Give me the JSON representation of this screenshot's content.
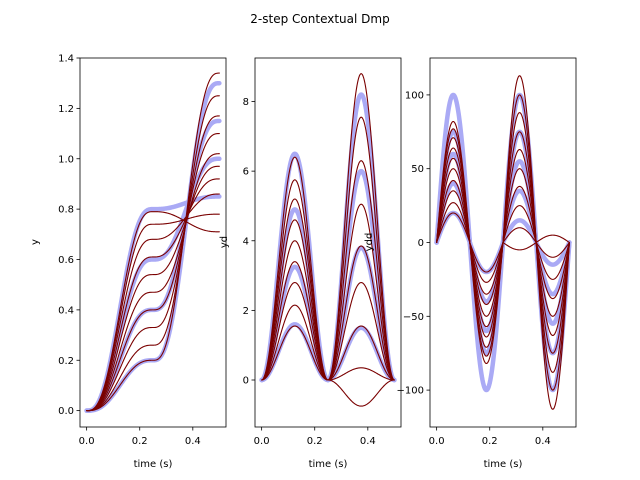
{
  "figure": {
    "title": "2-step Contextual Dmp",
    "colors": {
      "demo": "#aaaaf5",
      "reproduction": "#7a0000"
    }
  },
  "chart_data": [
    {
      "type": "line",
      "function": "y",
      "xlabel": "time (s)",
      "ylabel": "y",
      "xlim": [
        -0.025,
        0.525
      ],
      "ylim": [
        -0.065,
        1.4
      ],
      "xticks": [
        0.0,
        0.2,
        0.4
      ],
      "xtick_labels": [
        "0.0",
        "0.2",
        "0.4"
      ],
      "yticks": [
        0.0,
        0.2,
        0.4,
        0.6,
        0.8,
        1.0,
        1.2,
        1.4
      ],
      "ytick_labels": [
        "0.0",
        "0.2",
        "0.4",
        "0.6",
        "0.8",
        "1.0",
        "1.2",
        "1.4"
      ],
      "grid": false,
      "parameters": {
        "duration_s": 0.5,
        "crossing_time_s": 0.375,
        "crossing_value": 0.75,
        "demo_first_plateau": [
          0.2,
          0.4,
          0.6,
          0.8
        ],
        "reproduction_first_plateau": [
          0.2,
          0.26,
          0.33,
          0.4,
          0.47,
          0.54,
          0.61,
          0.68,
          0.74,
          0.79
        ],
        "demo_final_values": [
          1.3,
          1.15,
          1.0,
          0.85
        ],
        "reproduction_final_values": [
          1.34,
          1.25,
          1.17,
          1.1,
          1.02,
          0.97,
          0.92,
          0.86,
          0.78,
          0.71
        ]
      }
    },
    {
      "type": "line",
      "function": "yd",
      "xlabel": "time (s)",
      "ylabel": "yd",
      "xlim": [
        -0.025,
        0.525
      ],
      "ylim": [
        -1.35,
        9.25
      ],
      "xticks": [
        0.0,
        0.2,
        0.4
      ],
      "xtick_labels": [
        "0.0",
        "0.2",
        "0.4"
      ],
      "yticks": [
        0,
        2,
        4,
        6,
        8
      ],
      "ytick_labels": [
        "0",
        "2",
        "4",
        "6",
        "8"
      ],
      "grid": false,
      "parameters": {
        "demo_first_peak": [
          1.6,
          3.25,
          4.9,
          6.5
        ],
        "demo_second_peak": [
          8.2,
          6.0,
          3.8,
          1.5
        ],
        "reproduction_first_peak": [
          1.55,
          2.15,
          2.8,
          3.4,
          4.0,
          4.6,
          5.2,
          5.75,
          6.4
        ],
        "reproduction_second_peak": [
          8.8,
          7.55,
          6.3,
          5.05,
          3.85,
          2.8,
          1.55,
          0.35,
          -0.75
        ]
      }
    },
    {
      "type": "line",
      "function": "ydd",
      "xlabel": "time (s)",
      "ylabel": "ydd",
      "xlim": [
        -0.025,
        0.525
      ],
      "ylim": [
        -125,
        125
      ],
      "xticks": [
        0.0,
        0.2,
        0.4
      ],
      "xtick_labels": [
        "0.0",
        "0.2",
        "0.4"
      ],
      "yticks": [
        -100,
        -50,
        0,
        50,
        100
      ],
      "ytick_labels": [
        "−100",
        "−50",
        "0",
        "50",
        "100"
      ],
      "grid": false,
      "parameters": {
        "demo_amplitude": [
          20,
          40,
          60,
          75,
          100
        ],
        "demo_second_amplitude": [
          15,
          35,
          55,
          75,
          100
        ],
        "reproduction_amplitude": [
          20,
          27,
          35,
          42,
          50,
          57,
          64,
          71,
          77,
          82
        ],
        "reproduction_second_amplitude": [
          113,
          100,
          88,
          75,
          63,
          50,
          38,
          25,
          10,
          -5
        ]
      }
    }
  ]
}
